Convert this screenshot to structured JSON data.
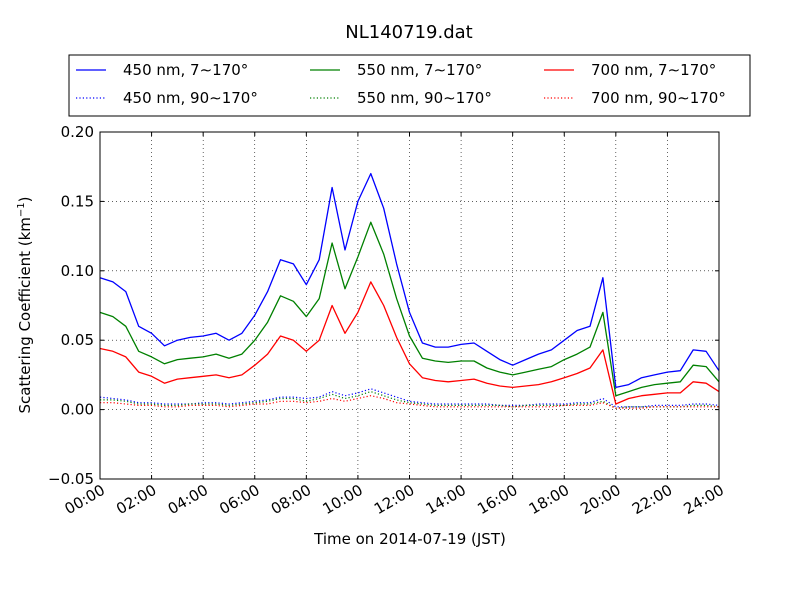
{
  "chart_data": {
    "type": "line",
    "title": "NL140719.dat",
    "xlabel": "Time on 2014-07-19 (JST)",
    "ylabel": "Scattering Coefficient (km",
    "ylabel_exponent": "−1",
    "ylabel_close": ")",
    "xlim": [
      "00:00",
      "24:00"
    ],
    "ylim": [
      -0.05,
      0.2
    ],
    "grid": true,
    "legend_placement": "top, above plot, 3 columns",
    "x_tick_labels": [
      "00:00",
      "02:00",
      "04:00",
      "06:00",
      "08:00",
      "10:00",
      "12:00",
      "14:00",
      "16:00",
      "18:00",
      "20:00",
      "22:00",
      "24:00"
    ],
    "x_tick_hours": [
      0,
      2,
      4,
      6,
      8,
      10,
      12,
      14,
      16,
      18,
      20,
      22,
      24
    ],
    "y_tick_labels": [
      "−0.05",
      "0.00",
      "0.05",
      "0.10",
      "0.15",
      "0.20"
    ],
    "y_tick_values": [
      -0.05,
      0,
      0.05,
      0.1,
      0.15,
      0.2
    ],
    "x_hours": [
      0,
      0.5,
      1,
      1.5,
      2,
      2.5,
      3,
      3.5,
      4,
      4.5,
      5,
      5.5,
      6,
      6.5,
      7,
      7.5,
      8,
      8.5,
      9,
      9.5,
      10,
      10.5,
      11,
      11.5,
      12,
      12.5,
      13,
      13.5,
      14,
      14.5,
      15,
      15.5,
      16,
      16.5,
      17,
      17.5,
      18,
      18.5,
      19,
      19.5,
      20,
      20.5,
      21,
      21.5,
      22,
      22.5,
      23,
      23.5,
      24
    ],
    "series": [
      {
        "name": "450 nm, 7∼170°",
        "color": "#0000ff",
        "style": "solid",
        "values": [
          0.095,
          0.092,
          0.085,
          0.06,
          0.055,
          0.046,
          0.05,
          0.052,
          0.053,
          0.055,
          0.05,
          0.055,
          0.068,
          0.085,
          0.108,
          0.105,
          0.09,
          0.108,
          0.16,
          0.115,
          0.15,
          0.17,
          0.145,
          0.105,
          0.07,
          0.048,
          0.045,
          0.045,
          0.047,
          0.048,
          0.042,
          0.036,
          0.032,
          0.036,
          0.04,
          0.043,
          0.05,
          0.057,
          0.06,
          0.095,
          0.016,
          0.018,
          0.023,
          0.025,
          0.027,
          0.028,
          0.043,
          0.042,
          0.028
        ]
      },
      {
        "name": "550 nm, 7∼170°",
        "color": "#008000",
        "style": "solid",
        "values": [
          0.07,
          0.067,
          0.06,
          0.042,
          0.038,
          0.033,
          0.036,
          0.037,
          0.038,
          0.04,
          0.037,
          0.04,
          0.05,
          0.063,
          0.082,
          0.078,
          0.067,
          0.08,
          0.12,
          0.087,
          0.11,
          0.135,
          0.112,
          0.08,
          0.053,
          0.037,
          0.035,
          0.034,
          0.035,
          0.035,
          0.03,
          0.027,
          0.025,
          0.027,
          0.029,
          0.031,
          0.036,
          0.04,
          0.045,
          0.07,
          0.01,
          0.013,
          0.016,
          0.018,
          0.019,
          0.02,
          0.032,
          0.031,
          0.02
        ]
      },
      {
        "name": "700 nm, 7∼170°",
        "color": "#ff0000",
        "style": "solid",
        "values": [
          0.044,
          0.042,
          0.038,
          0.027,
          0.024,
          0.019,
          0.022,
          0.023,
          0.024,
          0.025,
          0.023,
          0.025,
          0.032,
          0.04,
          0.053,
          0.05,
          0.042,
          0.05,
          0.075,
          0.055,
          0.07,
          0.092,
          0.075,
          0.052,
          0.033,
          0.023,
          0.021,
          0.02,
          0.021,
          0.022,
          0.019,
          0.017,
          0.016,
          0.017,
          0.018,
          0.02,
          0.023,
          0.026,
          0.03,
          0.043,
          0.004,
          0.008,
          0.01,
          0.011,
          0.012,
          0.012,
          0.02,
          0.019,
          0.013
        ]
      },
      {
        "name": "450 nm, 90∼170°",
        "color": "#0000ff",
        "style": "dotted",
        "values": [
          0.009,
          0.008,
          0.007,
          0.005,
          0.005,
          0.004,
          0.004,
          0.004,
          0.005,
          0.005,
          0.004,
          0.005,
          0.006,
          0.007,
          0.009,
          0.009,
          0.008,
          0.009,
          0.013,
          0.01,
          0.012,
          0.015,
          0.012,
          0.009,
          0.006,
          0.005,
          0.004,
          0.004,
          0.004,
          0.004,
          0.004,
          0.003,
          0.003,
          0.003,
          0.004,
          0.004,
          0.004,
          0.005,
          0.005,
          0.008,
          0.002,
          0.002,
          0.002,
          0.003,
          0.003,
          0.003,
          0.004,
          0.004,
          0.003
        ]
      },
      {
        "name": "550 nm, 90∼170°",
        "color": "#008000",
        "style": "dotted",
        "values": [
          0.007,
          0.007,
          0.006,
          0.004,
          0.004,
          0.003,
          0.003,
          0.004,
          0.004,
          0.004,
          0.003,
          0.004,
          0.005,
          0.006,
          0.008,
          0.008,
          0.006,
          0.008,
          0.011,
          0.008,
          0.01,
          0.013,
          0.01,
          0.007,
          0.005,
          0.004,
          0.003,
          0.003,
          0.003,
          0.003,
          0.003,
          0.003,
          0.002,
          0.003,
          0.003,
          0.003,
          0.003,
          0.004,
          0.004,
          0.006,
          0.001,
          0.002,
          0.002,
          0.002,
          0.002,
          0.002,
          0.003,
          0.003,
          0.002
        ]
      },
      {
        "name": "700 nm, 90∼170°",
        "color": "#ff0000",
        "style": "dotted",
        "values": [
          0.005,
          0.005,
          0.004,
          0.003,
          0.003,
          0.002,
          0.002,
          0.003,
          0.003,
          0.003,
          0.002,
          0.003,
          0.004,
          0.004,
          0.006,
          0.006,
          0.005,
          0.006,
          0.008,
          0.006,
          0.008,
          0.01,
          0.008,
          0.005,
          0.004,
          0.003,
          0.002,
          0.002,
          0.002,
          0.002,
          0.002,
          0.002,
          0.002,
          0.002,
          0.002,
          0.002,
          0.003,
          0.003,
          0.003,
          0.005,
          0.001,
          0.001,
          0.001,
          0.002,
          0.002,
          0.002,
          0.002,
          0.002,
          0.002
        ]
      }
    ]
  }
}
